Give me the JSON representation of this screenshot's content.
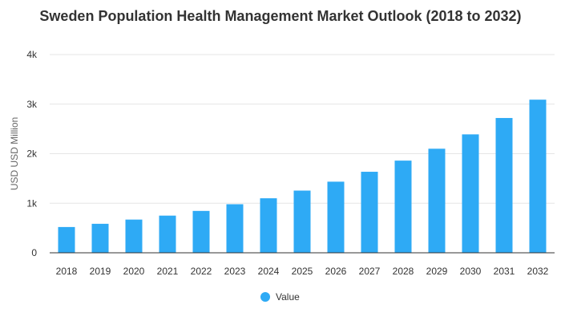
{
  "chart_data": {
    "type": "bar",
    "title": "Sweden Population Health Management Market Outlook (2018 to 2032)",
    "xlabel": "",
    "ylabel": "USD USD Million",
    "ylim": [
      0,
      4000
    ],
    "yticks": [
      0,
      1000,
      2000,
      3000,
      4000
    ],
    "ytick_labels": [
      "0",
      "1k",
      "2k",
      "3k",
      "4k"
    ],
    "grid": true,
    "legend_position": "bottom-center",
    "categories": [
      "2018",
      "2019",
      "2020",
      "2021",
      "2022",
      "2023",
      "2024",
      "2025",
      "2026",
      "2027",
      "2028",
      "2029",
      "2030",
      "2031",
      "2032"
    ],
    "series": [
      {
        "name": "Value",
        "color": "#2eaaf5",
        "values": [
          520,
          585,
          670,
          750,
          845,
          980,
          1100,
          1255,
          1435,
          1635,
          1860,
          2100,
          2390,
          2720,
          3090
        ]
      }
    ]
  }
}
